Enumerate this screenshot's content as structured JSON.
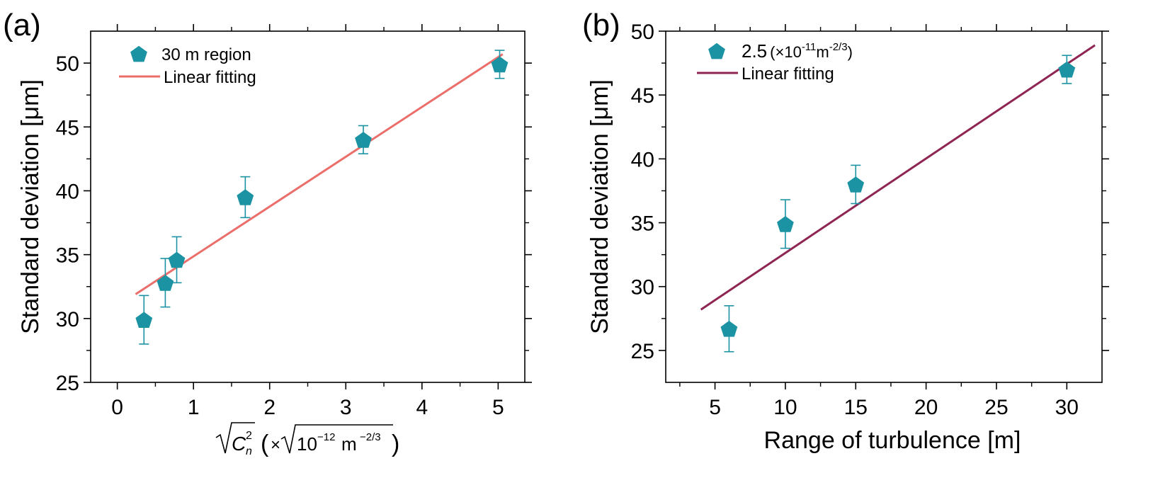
{
  "chart_data": [
    {
      "type": "scatter",
      "panel_label": "(a)",
      "xlabel": "√C²ₙ (×√10⁻¹² m⁻²ᐟ³)",
      "xlabel_parts": {
        "c_letter": "C",
        "c_sup": "2",
        "c_sub": "n",
        "times": "×",
        "base": "10",
        "exp1": "−12",
        "unit": "m",
        "exp2": "−2/3",
        "open": "(",
        "close": ")"
      },
      "ylabel": "Standard deviation [μm]",
      "xlim": [
        -0.35,
        5.35
      ],
      "ylim": [
        25,
        52.5
      ],
      "xticks": [
        0,
        1,
        2,
        3,
        4,
        5
      ],
      "yticks": [
        25,
        30,
        35,
        40,
        45,
        50
      ],
      "xminor": [
        0.5,
        1.5,
        2.5,
        3.5,
        4.5
      ],
      "yminor": [
        27.5,
        32.5,
        37.5,
        42.5,
        47.5
      ],
      "grid": false,
      "legend_position": "top-left",
      "series": [
        {
          "name": "30 m region",
          "kind": "scatter",
          "marker": "pentagon",
          "color": "#1b93a3",
          "x": [
            0.35,
            0.63,
            0.78,
            1.68,
            3.23,
            5.02
          ],
          "y": [
            29.9,
            32.8,
            34.6,
            39.5,
            44.0,
            49.9
          ],
          "err": [
            1.9,
            1.9,
            1.8,
            1.6,
            1.1,
            1.1
          ]
        },
        {
          "name": "Linear fitting",
          "kind": "line",
          "color": "#ec6e6b",
          "x": [
            0.24,
            5.06
          ],
          "y": [
            31.9,
            50.7
          ]
        }
      ]
    },
    {
      "type": "scatter",
      "panel_label": "(b)",
      "xlabel": "Range of turbulence [m]",
      "ylabel": "Standard deviation [μm]",
      "xlim": [
        1.5,
        32.5
      ],
      "ylim": [
        22.5,
        50
      ],
      "xticks": [
        5,
        10,
        15,
        20,
        25,
        30
      ],
      "yticks": [
        25,
        30,
        35,
        40,
        45,
        50
      ],
      "xminor": [
        2.5,
        7.5,
        12.5,
        17.5,
        22.5,
        27.5
      ],
      "yminor": [
        27.5,
        32.5,
        37.5,
        42.5,
        47.5
      ],
      "grid": false,
      "legend_position": "top-left",
      "series": [
        {
          "name": "2.5 (×10⁻¹¹m⁻²ᐟ³)",
          "legend_parts": {
            "value": "2.5",
            "open": "(×10",
            "exp1": "-11",
            "unit": "m",
            "exp2": "-2/3",
            "close": ")"
          },
          "kind": "scatter",
          "marker": "pentagon",
          "color": "#1b93a3",
          "x": [
            6,
            10,
            15,
            30
          ],
          "y": [
            26.7,
            34.9,
            38.0,
            47.0
          ],
          "err": [
            1.8,
            1.9,
            1.5,
            1.1
          ]
        },
        {
          "name": "Linear fitting",
          "kind": "line",
          "color": "#8e2552",
          "x": [
            4,
            32
          ],
          "y": [
            28.2,
            48.9
          ]
        }
      ]
    }
  ]
}
